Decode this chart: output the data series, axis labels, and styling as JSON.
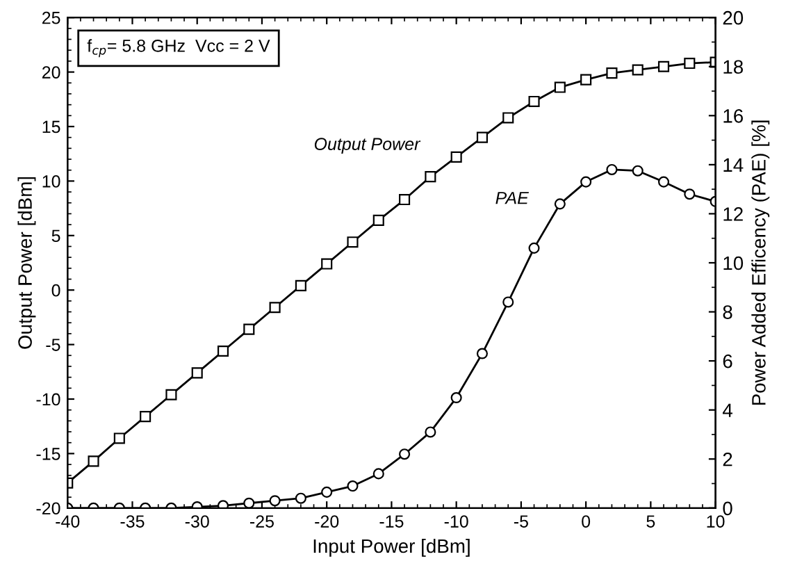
{
  "chart_data": {
    "type": "line",
    "xlabel": "Input Power [dBm]",
    "ylabel": "Output Power [dBm]",
    "y2label": "Power Added Efficency (PAE) [%]",
    "x": [
      -40,
      -38,
      -36,
      -34,
      -32,
      -30,
      -28,
      -26,
      -24,
      -22,
      -20,
      -18,
      -16,
      -14,
      -12,
      -10,
      -8,
      -6,
      -4,
      -2,
      0,
      2,
      4,
      6,
      8,
      10
    ],
    "series": [
      {
        "color": "#000000",
        "marker": "square",
        "values": [
          -17.7,
          -15.7,
          -13.6,
          -11.6,
          -9.6,
          -7.6,
          -5.6,
          -3.6,
          -1.6,
          0.4,
          2.4,
          4.4,
          6.4,
          8.3,
          10.4,
          12.2,
          14.0,
          15.8,
          17.3,
          18.6,
          19.3,
          19.9,
          20.2,
          20.5,
          20.8,
          20.9
        ]
      },
      {
        "color": "#000000",
        "marker": "circle",
        "axis": "y2",
        "values": [
          0,
          0,
          0,
          0,
          0,
          0.05,
          0.1,
          0.2,
          0.3,
          0.4,
          0.65,
          0.9,
          1.4,
          2.2,
          3.1,
          4.5,
          6.3,
          8.4,
          10.6,
          12.4,
          13.3,
          13.8,
          13.75,
          13.3,
          12.8,
          12.5
        ]
      }
    ],
    "xlim": [
      -40,
      10
    ],
    "xticks": [
      -40,
      -35,
      -30,
      -25,
      -20,
      -15,
      -10,
      -5,
      0,
      5,
      10
    ],
    "ylim": [
      -20,
      25
    ],
    "yticks": [
      -20,
      -15,
      -10,
      -5,
      0,
      5,
      10,
      15,
      20,
      25
    ],
    "y2lim": [
      0,
      20
    ],
    "y2ticks": [
      0,
      2,
      4,
      6,
      8,
      10,
      12,
      14,
      16,
      18,
      20
    ],
    "annotations": [
      "f$_{cp}$= 5.8 GHz  Vcc = 2 V",
      "Output Power",
      "PAE"
    ],
    "line_style": "solid"
  }
}
